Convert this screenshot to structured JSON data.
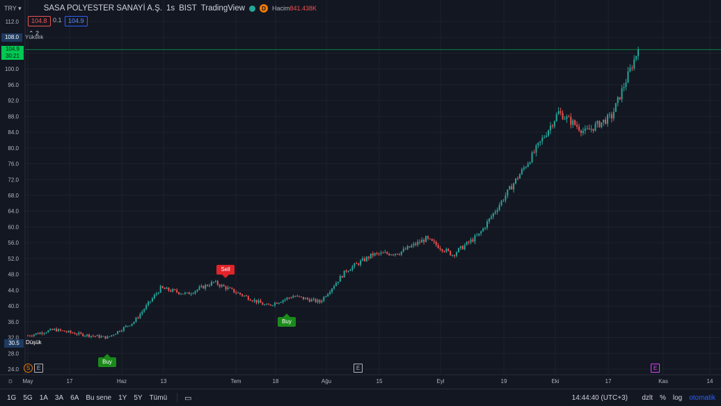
{
  "header": {
    "currency": "TRY ▾",
    "symbol": "SASA POLYESTER SANAYİ A.Ş.",
    "interval": "1s",
    "exchange": "BIST",
    "source": "TradingView",
    "delay_badge": "D",
    "volume_label": "Hacim",
    "volume_value": "841.438K",
    "bid": "104.8",
    "spread": "0.1",
    "ask": "104.9",
    "collapse_label": "⌃ 2"
  },
  "price_axis": {
    "ticks": [
      "112.0",
      "108.0",
      "104.0",
      "100.0",
      "96.0",
      "92.0",
      "88.0",
      "84.0",
      "80.0",
      "76.0",
      "72.0",
      "68.0",
      "64.0",
      "60.0",
      "56.0",
      "52.0",
      "48.0",
      "44.0",
      "40.0",
      "36.0",
      "32.0",
      "28.0",
      "24.0"
    ],
    "last_price": "104.9",
    "countdown": "30:21",
    "high_price": "108.0",
    "high_label": "Yüksek",
    "low_price": "30.5",
    "low_label": "Düşük"
  },
  "time_axis": {
    "ticks": [
      "May",
      "17",
      "Haz",
      "13",
      "Tem",
      "18",
      "Ağu",
      "15",
      "Eyl",
      "19",
      "Eki",
      "17",
      "Kas",
      "14"
    ]
  },
  "signals": [
    {
      "label": "Buy",
      "kind": "buy"
    },
    {
      "label": "Sell",
      "kind": "sell"
    },
    {
      "label": "Buy",
      "kind": "buy"
    }
  ],
  "events": [
    {
      "label": "S",
      "color": "#f57c00"
    },
    {
      "label": "E",
      "color": "#b2b5be"
    },
    {
      "label": "E",
      "color": "#b2b5be"
    },
    {
      "label": "E",
      "color": "#e040fb"
    }
  ],
  "bottom_bar": {
    "ranges": [
      "1G",
      "5G",
      "1A",
      "3A",
      "6A",
      "Bu sene",
      "1Y",
      "5Y",
      "Tümü"
    ],
    "time": "14:44:40 (UTC+3)",
    "adj": "dzlt",
    "percent": "%",
    "log": "log",
    "auto": "otomatik"
  },
  "colors": {
    "up": "#26a69a",
    "down": "#ef5350",
    "background": "#131722",
    "grid": "#1e222d",
    "price_line": "#00c853"
  },
  "chart_data": {
    "type": "candlestick",
    "x_range": [
      "May",
      "Kas 14"
    ],
    "ylim": [
      24,
      112
    ],
    "grid": true,
    "approx_close_path": [
      {
        "x": "May",
        "y": 32.5
      },
      {
        "x": "May",
        "y": 34.0
      },
      {
        "x": "17",
        "y": 32.8
      },
      {
        "x": "Haz",
        "y": 32.0
      },
      {
        "x": "Haz",
        "y": 36.0
      },
      {
        "x": "13",
        "y": 44.5
      },
      {
        "x": "13",
        "y": 43.0
      },
      {
        "x": "Tem",
        "y": 46.0
      },
      {
        "x": "Tem",
        "y": 43.0
      },
      {
        "x": "18",
        "y": 40.0
      },
      {
        "x": "18",
        "y": 42.5
      },
      {
        "x": "Ağu",
        "y": 41.0
      },
      {
        "x": "Ağu",
        "y": 49.0
      },
      {
        "x": "15",
        "y": 53.0
      },
      {
        "x": "Eyl",
        "y": 53.5
      },
      {
        "x": "Eyl",
        "y": 57.0
      },
      {
        "x": "19",
        "y": 53.0
      },
      {
        "x": "19",
        "y": 58.0
      },
      {
        "x": "Eki",
        "y": 68.0
      },
      {
        "x": "Eki",
        "y": 78.0
      },
      {
        "x": "Eki",
        "y": 89.0
      },
      {
        "x": "17",
        "y": 84.0
      },
      {
        "x": "17",
        "y": 88.0
      },
      {
        "x": "Kas",
        "y": 104.9
      }
    ]
  }
}
